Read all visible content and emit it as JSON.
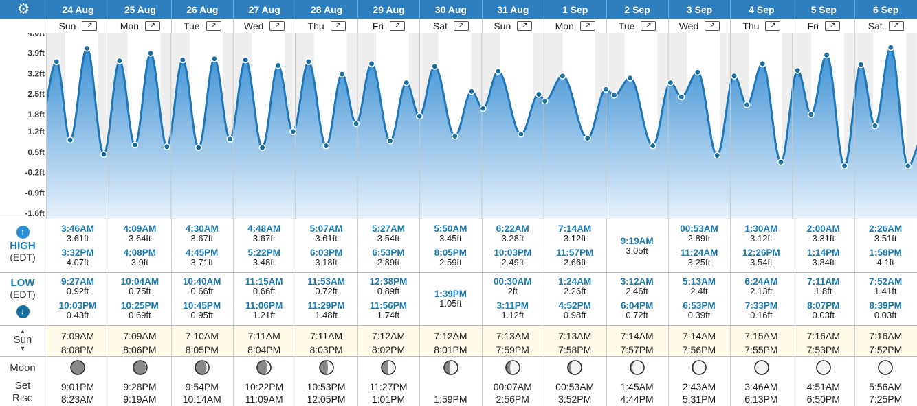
{
  "header": {
    "settings_icon": "gear-icon",
    "dates": [
      "24 Aug",
      "25 Aug",
      "26 Aug",
      "27 Aug",
      "28 Aug",
      "29 Aug",
      "30 Aug",
      "31 Aug",
      "1 Sep",
      "2 Sep",
      "3 Sep",
      "4 Sep",
      "5 Sep",
      "6 Sep"
    ],
    "weekdays": [
      "Sun",
      "Mon",
      "Tue",
      "Wed",
      "Thu",
      "Fri",
      "Sat",
      "Sun",
      "Mon",
      "Tue",
      "Wed",
      "Thu",
      "Fri",
      "Sat"
    ],
    "expand_icon": "expand-arrows-icon"
  },
  "chart_data": {
    "type": "area",
    "ylabels": [
      "4.6ft",
      "3.9ft",
      "3.2ft",
      "2.5ft",
      "1.8ft",
      "1.2ft",
      "0.5ft",
      "-0.2ft",
      "-0.9ft",
      "-1.6ft"
    ],
    "ylim": [
      -1.6,
      4.6
    ],
    "x_unit": "day index (0 = 24 Aug 00:00)",
    "points": [
      [
        -0.1,
        1.6
      ],
      [
        0.158,
        3.61
      ],
      [
        0.377,
        0.92
      ],
      [
        0.647,
        4.07
      ],
      [
        0.919,
        0.43
      ],
      [
        1.173,
        3.64
      ],
      [
        1.419,
        0.75
      ],
      [
        1.672,
        3.9
      ],
      [
        1.934,
        0.69
      ],
      [
        2.188,
        3.67
      ],
      [
        2.444,
        0.66
      ],
      [
        2.698,
        3.71
      ],
      [
        2.948,
        0.95
      ],
      [
        3.2,
        3.67
      ],
      [
        3.469,
        0.66
      ],
      [
        3.724,
        3.48
      ],
      [
        3.963,
        1.21
      ],
      [
        4.213,
        3.61
      ],
      [
        4.495,
        0.72
      ],
      [
        4.752,
        3.18
      ],
      [
        4.979,
        1.48
      ],
      [
        5.227,
        3.54
      ],
      [
        5.526,
        0.89
      ],
      [
        5.787,
        2.89
      ],
      [
        5.997,
        1.74
      ],
      [
        6.243,
        3.45
      ],
      [
        6.569,
        1.05
      ],
      [
        6.837,
        2.59
      ],
      [
        7.021,
        2.0
      ],
      [
        7.265,
        3.28
      ],
      [
        7.632,
        1.12
      ],
      [
        7.919,
        2.49
      ],
      [
        8.017,
        2.26
      ],
      [
        8.301,
        3.12
      ],
      [
        8.703,
        0.98
      ],
      [
        8.998,
        2.66
      ],
      [
        9.133,
        2.46
      ],
      [
        9.388,
        3.05
      ],
      [
        9.753,
        0.72
      ],
      [
        10.037,
        2.89
      ],
      [
        10.214,
        2.4
      ],
      [
        10.475,
        3.25
      ],
      [
        10.787,
        0.39
      ],
      [
        11.063,
        3.12
      ],
      [
        11.267,
        2.13
      ],
      [
        11.518,
        3.54
      ],
      [
        11.814,
        0.16
      ],
      [
        12.083,
        3.31
      ],
      [
        12.299,
        1.8
      ],
      [
        12.551,
        3.84
      ],
      [
        12.838,
        0.03
      ],
      [
        13.101,
        3.51
      ],
      [
        13.328,
        1.41
      ],
      [
        13.582,
        4.1
      ],
      [
        13.86,
        0.03
      ],
      [
        14.1,
        1.0
      ]
    ]
  },
  "high": {
    "label": "HIGH",
    "tz": "(EDT)",
    "icon": "arrow-up-icon",
    "rows": [
      [
        [
          "3:46AM",
          "3.61ft"
        ],
        [
          "3:32PM",
          "4.07ft"
        ]
      ],
      [
        [
          "4:09AM",
          "3.64ft"
        ],
        [
          "4:08PM",
          "3.9ft"
        ]
      ],
      [
        [
          "4:30AM",
          "3.67ft"
        ],
        [
          "4:45PM",
          "3.71ft"
        ]
      ],
      [
        [
          "4:48AM",
          "3.67ft"
        ],
        [
          "5:22PM",
          "3.48ft"
        ]
      ],
      [
        [
          "5:07AM",
          "3.61ft"
        ],
        [
          "6:03PM",
          "3.18ft"
        ]
      ],
      [
        [
          "5:27AM",
          "3.54ft"
        ],
        [
          "6:53PM",
          "2.89ft"
        ]
      ],
      [
        [
          "5:50AM",
          "3.45ft"
        ],
        [
          "8:05PM",
          "2.59ft"
        ]
      ],
      [
        [
          "6:22AM",
          "3.28ft"
        ],
        [
          "10:03PM",
          "2.49ft"
        ]
      ],
      [
        [
          "7:14AM",
          "3.12ft"
        ],
        [
          "11:57PM",
          "2.66ft"
        ]
      ],
      [
        [
          "9:19AM",
          "3.05ft"
        ]
      ],
      [
        [
          "00:53AM",
          "2.89ft"
        ],
        [
          "11:24AM",
          "3.25ft"
        ]
      ],
      [
        [
          "1:30AM",
          "3.12ft"
        ],
        [
          "12:26PM",
          "3.54ft"
        ]
      ],
      [
        [
          "2:00AM",
          "3.31ft"
        ],
        [
          "1:14PM",
          "3.84ft"
        ]
      ],
      [
        [
          "2:26AM",
          "3.51ft"
        ],
        [
          "1:58PM",
          "4.1ft"
        ]
      ]
    ]
  },
  "low": {
    "label": "LOW",
    "tz": "(EDT)",
    "icon": "arrow-down-icon",
    "rows": [
      [
        [
          "9:27AM",
          "0.92ft"
        ],
        [
          "10:03PM",
          "0.43ft"
        ]
      ],
      [
        [
          "10:04AM",
          "0.75ft"
        ],
        [
          "10:25PM",
          "0.69ft"
        ]
      ],
      [
        [
          "10:40AM",
          "0.66ft"
        ],
        [
          "10:45PM",
          "0.95ft"
        ]
      ],
      [
        [
          "11:15AM",
          "0.66ft"
        ],
        [
          "11:06PM",
          "1.21ft"
        ]
      ],
      [
        [
          "11:53AM",
          "0.72ft"
        ],
        [
          "11:29PM",
          "1.48ft"
        ]
      ],
      [
        [
          "12:38PM",
          "0.89ft"
        ],
        [
          "11:56PM",
          "1.74ft"
        ]
      ],
      [
        [
          "1:39PM",
          "1.05ft"
        ]
      ],
      [
        [
          "00:30AM",
          "2ft"
        ],
        [
          "3:11PM",
          "1.12ft"
        ]
      ],
      [
        [
          "1:24AM",
          "2.26ft"
        ],
        [
          "4:52PM",
          "0.98ft"
        ]
      ],
      [
        [
          "3:12AM",
          "2.46ft"
        ],
        [
          "6:04PM",
          "0.72ft"
        ]
      ],
      [
        [
          "5:13AM",
          "2.4ft"
        ],
        [
          "6:53PM",
          "0.39ft"
        ]
      ],
      [
        [
          "6:24AM",
          "2.13ft"
        ],
        [
          "7:33PM",
          "0.16ft"
        ]
      ],
      [
        [
          "7:11AM",
          "1.8ft"
        ],
        [
          "8:07PM",
          "0.03ft"
        ]
      ],
      [
        [
          "7:52AM",
          "1.41ft"
        ],
        [
          "8:39PM",
          "0.03ft"
        ]
      ]
    ]
  },
  "sun": {
    "label": "Sun",
    "rise": [
      "7:09AM",
      "7:09AM",
      "7:10AM",
      "7:11AM",
      "7:11AM",
      "7:12AM",
      "7:12AM",
      "7:13AM",
      "7:13AM",
      "7:14AM",
      "7:14AM",
      "7:15AM",
      "7:16AM",
      "7:16AM"
    ],
    "set": [
      "8:08PM",
      "8:06PM",
      "8:05PM",
      "8:04PM",
      "8:03PM",
      "8:02PM",
      "8:01PM",
      "7:59PM",
      "7:58PM",
      "7:57PM",
      "7:56PM",
      "7:55PM",
      "7:53PM",
      "7:52PM"
    ]
  },
  "moon": {
    "label": "Moon",
    "set_label": "Set",
    "rise_label": "Rise",
    "icon": "moon-phase-icon",
    "illumination": [
      0.05,
      0.1,
      0.18,
      0.28,
      0.4,
      0.5,
      0.6,
      0.7,
      0.78,
      0.85,
      0.9,
      0.95,
      0.98,
      1.0
    ],
    "set": [
      "9:01PM",
      "9:28PM",
      "9:54PM",
      "10:22PM",
      "10:53PM",
      "11:27PM",
      "",
      "00:07AM",
      "00:53AM",
      "1:45AM",
      "2:43AM",
      "3:46AM",
      "4:51AM",
      "5:56AM"
    ],
    "rise": [
      "8:23AM",
      "9:19AM",
      "10:14AM",
      "11:09AM",
      "12:05PM",
      "1:01PM",
      "1:59PM",
      "2:56PM",
      "3:52PM",
      "4:44PM",
      "5:31PM",
      "6:13PM",
      "6:50PM",
      "7:25PM"
    ]
  },
  "colors": {
    "header_bg": "#2f7fbf",
    "tide_line": "#1f77b8",
    "tide_fill_top": "#3a90d4",
    "tide_fill_bottom": "#e6f1fa",
    "point": "#1a6f9e",
    "time_text": "#1b7ab0"
  }
}
